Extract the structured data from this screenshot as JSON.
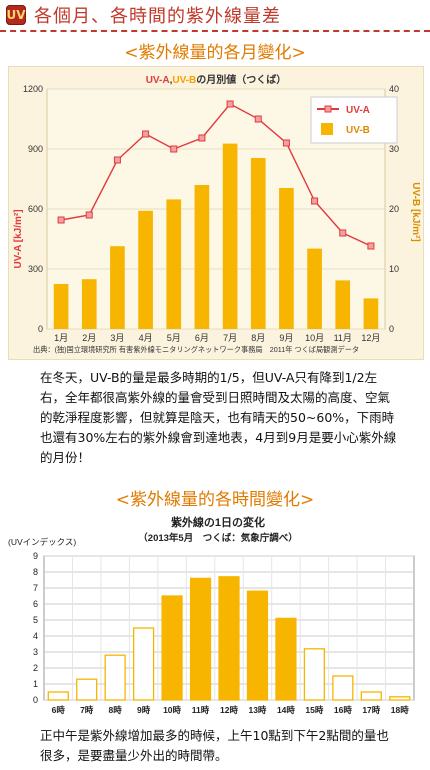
{
  "header": {
    "icon_text": "UV",
    "title": "各個月、各時間的紫外線量差"
  },
  "section1": {
    "subtitle": "<紫外線量的各月變化>",
    "paragraph": "在冬天，UV-B的量是最多時期的1/5，但UV-A只有降到1/2左右，全年都很高紫外線的量會受到日照時間及太陽的高度、空氣的乾淨程度影響，但就算是陰天，也有晴天的50~60%，下雨時也還有30%左右的紫外線會到達地表，4月到9月是要小心紫外線的月份！"
  },
  "section2": {
    "subtitle": "<紫外線量的各時間變化>",
    "paragraph": "正中午是紫外線增加最多的時候，上午10點到下午2點間的量也很多，是要盡量少外出的時間帶。"
  },
  "chart_data": [
    {
      "type": "bar",
      "title_uva": "UV-A",
      "title_sep": ",",
      "title_uvb": "UV-B",
      "title_rest": "の月別値（つくば）",
      "categories": [
        "1月",
        "2月",
        "3月",
        "4月",
        "5月",
        "6月",
        "7月",
        "8月",
        "9月",
        "10月",
        "11月",
        "12月"
      ],
      "series": [
        {
          "name": "UV-A",
          "axis": "left",
          "type": "line",
          "values": [
            545,
            570,
            845,
            975,
            900,
            955,
            1125,
            1050,
            930,
            640,
            480,
            415
          ]
        },
        {
          "name": "UV-B",
          "axis": "right",
          "type": "bar",
          "values": [
            7.5,
            8.3,
            13.8,
            19.7,
            21.6,
            24.0,
            30.9,
            28.5,
            23.5,
            13.4,
            8.1,
            5.1
          ]
        }
      ],
      "ylabel_left": "UV-A [kJ/m²]",
      "ylabel_right": "UV-B [kJ/m²]",
      "ylim_left": [
        0,
        1200
      ],
      "ylim_right": [
        0,
        40
      ],
      "yticks_left": [
        "0",
        "300",
        "600",
        "900",
        "1200"
      ],
      "yticks_right": [
        "0",
        "10",
        "20",
        "30",
        "40"
      ],
      "legend_position": "top-right",
      "source": "出典：(独)国立環境研究所 有害紫外線モニタリングネットワーク事務局　2011年 つくば局観測データ",
      "colors": {
        "uva": "#e03a3e",
        "uvb": "#f7b500",
        "grid": "#e6dcc0"
      }
    },
    {
      "type": "bar",
      "title": "紫外線の1日の変化",
      "subtitle": "（2013年5月　つくば：気象庁調べ）",
      "ylabel": "(UVインデックス)",
      "categories": [
        "6時",
        "7時",
        "8時",
        "9時",
        "10時",
        "11時",
        "12時",
        "13時",
        "14時",
        "15時",
        "16時",
        "17時",
        "18時"
      ],
      "values": [
        0.5,
        1.3,
        2.8,
        4.5,
        6.5,
        7.6,
        7.7,
        6.8,
        5.1,
        3.2,
        1.5,
        0.5,
        0.2
      ],
      "highlighted": [
        false,
        false,
        false,
        false,
        true,
        true,
        true,
        true,
        true,
        false,
        false,
        false,
        false
      ],
      "ylim": [
        0,
        9
      ],
      "yticks": [
        "0",
        "1",
        "2",
        "3",
        "4",
        "5",
        "6",
        "7",
        "8",
        "9"
      ],
      "colors": {
        "bar": "#f7b500",
        "outline": "#f7b500",
        "grid": "#cccccc"
      }
    }
  ]
}
